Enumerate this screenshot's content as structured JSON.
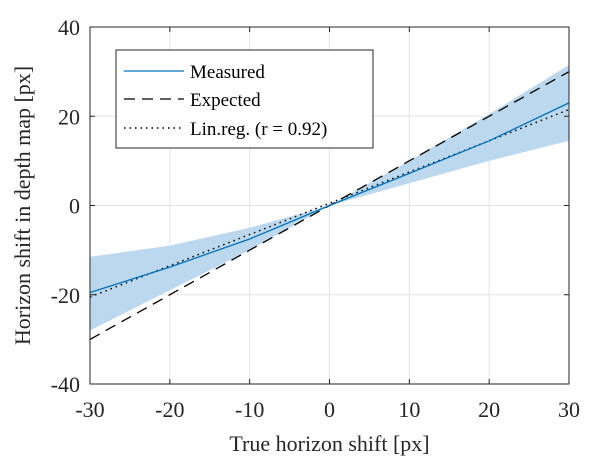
{
  "chart_data": {
    "type": "line",
    "xlabel": "True horizon shift [px]",
    "ylabel": "Horizon shift in depth map [px]",
    "xlim": [
      -30,
      30
    ],
    "ylim": [
      -40,
      40
    ],
    "xticks": [
      -30,
      -20,
      -10,
      0,
      10,
      20,
      30
    ],
    "yticks": [
      -40,
      -20,
      0,
      20,
      40
    ],
    "xtick_labels": [
      "-30",
      "-20",
      "-10",
      "0",
      "10",
      "20",
      "30"
    ],
    "ytick_labels": [
      "-40",
      "-20",
      "0",
      "20",
      "40"
    ],
    "grid": true,
    "legend_position": "top-left",
    "series": [
      {
        "name": "Measured",
        "style": "solid",
        "color": "#0072bd",
        "x": [
          -30,
          -20,
          -10,
          0,
          10,
          20,
          30
        ],
        "y": [
          -19.5,
          -13.8,
          -7.5,
          0,
          7.2,
          14.5,
          23.0
        ]
      },
      {
        "name": "Expected",
        "style": "dashed",
        "color": "#000000",
        "x": [
          -30,
          30
        ],
        "y": [
          -30,
          30
        ]
      },
      {
        "name": "Lin.reg. (r = 0.92)",
        "style": "dotted",
        "color": "#000000",
        "x": [
          -30,
          30
        ],
        "y": [
          -20.5,
          21.5
        ]
      }
    ],
    "band": {
      "color": "#bcd8ee",
      "x": [
        -30,
        -20,
        -10,
        0,
        10,
        20,
        30
      ],
      "upper": [
        -11.5,
        -9.0,
        -5.0,
        0,
        10.0,
        20.5,
        31.5
      ],
      "lower": [
        -28.0,
        -19.0,
        -10.0,
        0,
        5.0,
        10.0,
        14.5
      ]
    }
  }
}
